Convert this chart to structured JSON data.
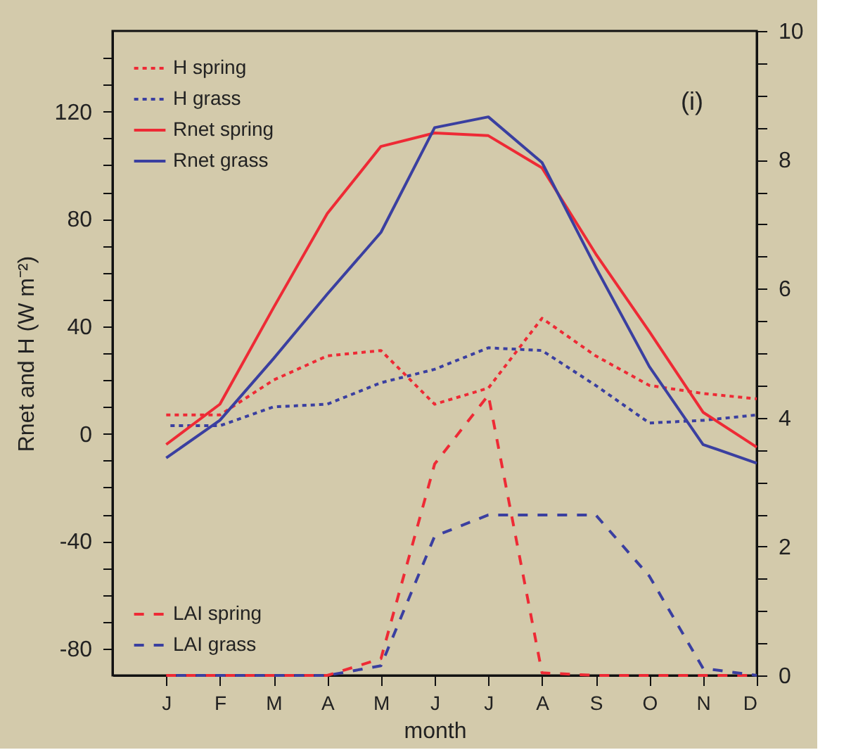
{
  "chart_data": {
    "type": "line",
    "xlabel": "month",
    "ylabel": "Rnet and H (W m⁻²)",
    "annotations": [
      "(i)"
    ],
    "categories": [
      "J",
      "F",
      "M",
      "A",
      "M",
      "J",
      "J",
      "A",
      "S",
      "O",
      "N",
      "D"
    ],
    "ylim": [
      -90,
      150
    ],
    "yticks": [
      -80,
      {
        "value": -70,
        "label": null
      },
      {
        "value": -60,
        "label": null
      },
      {
        "value": -50,
        "label": null
      },
      -40,
      {
        "value": -30,
        "label": null
      },
      {
        "value": -20,
        "label": null
      },
      {
        "value": -10,
        "label": null
      },
      0,
      {
        "value": 10,
        "label": null
      },
      {
        "value": 20,
        "label": null
      },
      {
        "value": 30,
        "label": null
      },
      40,
      {
        "value": 50,
        "label": null
      },
      {
        "value": 60,
        "label": null
      },
      {
        "value": 70,
        "label": null
      },
      80,
      {
        "value": 90,
        "label": null
      },
      {
        "value": 100,
        "label": null
      },
      {
        "value": 110,
        "label": null
      },
      120,
      {
        "value": 130,
        "label": null
      },
      {
        "value": 140,
        "label": null
      }
    ],
    "y2lim": [
      0,
      10
    ],
    "y2ticks": [
      0,
      {
        "value": 0.5,
        "label": null
      },
      {
        "value": 1,
        "label": null
      },
      {
        "value": 1.5,
        "label": null
      },
      2,
      {
        "value": 2.5,
        "label": null
      },
      {
        "value": 3,
        "label": null
      },
      {
        "value": 3.5,
        "label": null
      },
      4,
      {
        "value": 4.5,
        "label": null
      },
      {
        "value": 5,
        "label": null
      },
      {
        "value": 5.5,
        "label": null
      },
      6,
      {
        "value": 6.5,
        "label": null
      },
      {
        "value": 7,
        "label": null
      },
      {
        "value": 7.5,
        "label": null
      },
      8,
      {
        "value": 8.5,
        "label": null
      },
      {
        "value": 9,
        "label": null
      },
      {
        "value": 9.5,
        "label": null
      },
      10
    ],
    "grid": false,
    "legend": "left",
    "series": [
      {
        "name": "H spring",
        "color": "#ee2a35",
        "line_style": "dotted",
        "values": [
          7,
          7,
          20,
          29,
          31,
          11,
          17,
          43,
          29,
          18,
          15,
          13
        ]
      },
      {
        "name": "H grass",
        "color": "#3a3fa0",
        "line_style": "dotted",
        "values": [
          3,
          3,
          10,
          11,
          19,
          24,
          32,
          31,
          18,
          4,
          5,
          7
        ]
      },
      {
        "name": "Rnet spring",
        "color": "#ee2a35",
        "line_style": "solid",
        "values": [
          -4,
          11,
          47,
          82,
          107,
          112,
          111,
          99,
          67,
          38,
          8,
          -5
        ]
      },
      {
        "name": "Rnet grass",
        "color": "#3a3fa0",
        "line_style": "solid",
        "values": [
          -9,
          5,
          28,
          52,
          75,
          114,
          118,
          101,
          62,
          25,
          -4,
          -11
        ]
      },
      {
        "name": "LAI spring",
        "color": "#ee2a35",
        "line_style": "dashed",
        "axis": "y2",
        "values": [
          0,
          0,
          0,
          0,
          0.26,
          3.28,
          4.35,
          0.04,
          0,
          0,
          0,
          0
        ]
      },
      {
        "name": "LAI grass",
        "color": "#3a3fa0",
        "line_style": "dashed",
        "axis": "y2",
        "values": [
          0,
          0,
          0,
          0,
          0.15,
          2.16,
          2.49,
          2.49,
          2.49,
          1.54,
          0.11,
          0
        ]
      }
    ]
  }
}
